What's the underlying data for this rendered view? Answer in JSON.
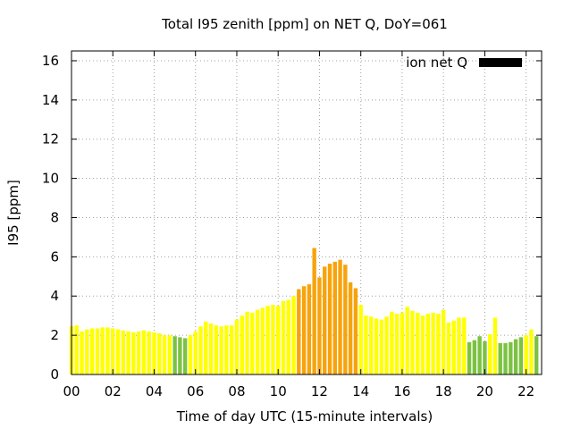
{
  "chart_data": {
    "type": "bar",
    "title": "Total I95 zenith [ppm] on NET Q, DoY=061",
    "xlabel": "Time of day UTC (15-minute intervals)",
    "ylabel": "I95 [ppm]",
    "xlim": [
      0,
      22.75
    ],
    "ylim": [
      0,
      16.5
    ],
    "x_ticks": [
      "00",
      "02",
      "04",
      "06",
      "08",
      "10",
      "12",
      "14",
      "16",
      "18",
      "20",
      "22"
    ],
    "y_ticks": [
      "0",
      "2",
      "4",
      "6",
      "8",
      "10",
      "12",
      "14",
      "16"
    ],
    "grid": true,
    "legend_position": "top-right",
    "series": [
      {
        "name": "ion net Q",
        "legend_color": "#000000",
        "interval_hours": 0.25,
        "values": [
          2.45,
          2.5,
          2.2,
          2.3,
          2.35,
          2.35,
          2.4,
          2.4,
          2.35,
          2.3,
          2.25,
          2.2,
          2.15,
          2.2,
          2.25,
          2.2,
          2.15,
          2.1,
          2.0,
          2.0,
          1.95,
          1.9,
          1.85,
          2.0,
          2.2,
          2.45,
          2.7,
          2.6,
          2.5,
          2.45,
          2.5,
          2.5,
          2.8,
          3.0,
          3.2,
          3.15,
          3.3,
          3.4,
          3.5,
          3.55,
          3.5,
          3.75,
          3.8,
          4.0,
          4.35,
          4.5,
          4.6,
          6.45,
          4.95,
          5.5,
          5.65,
          5.75,
          5.85,
          5.6,
          4.7,
          4.4,
          3.55,
          3.0,
          2.95,
          2.85,
          2.8,
          2.95,
          3.2,
          3.1,
          3.15,
          3.45,
          3.25,
          3.15,
          3.0,
          3.1,
          3.15,
          3.1,
          3.3,
          2.65,
          2.75,
          2.9,
          2.9,
          1.65,
          1.75,
          1.95,
          1.7,
          2.05,
          2.9,
          1.6,
          1.6,
          1.65,
          1.8,
          1.9,
          2.0,
          2.3,
          1.95
        ]
      }
    ]
  }
}
